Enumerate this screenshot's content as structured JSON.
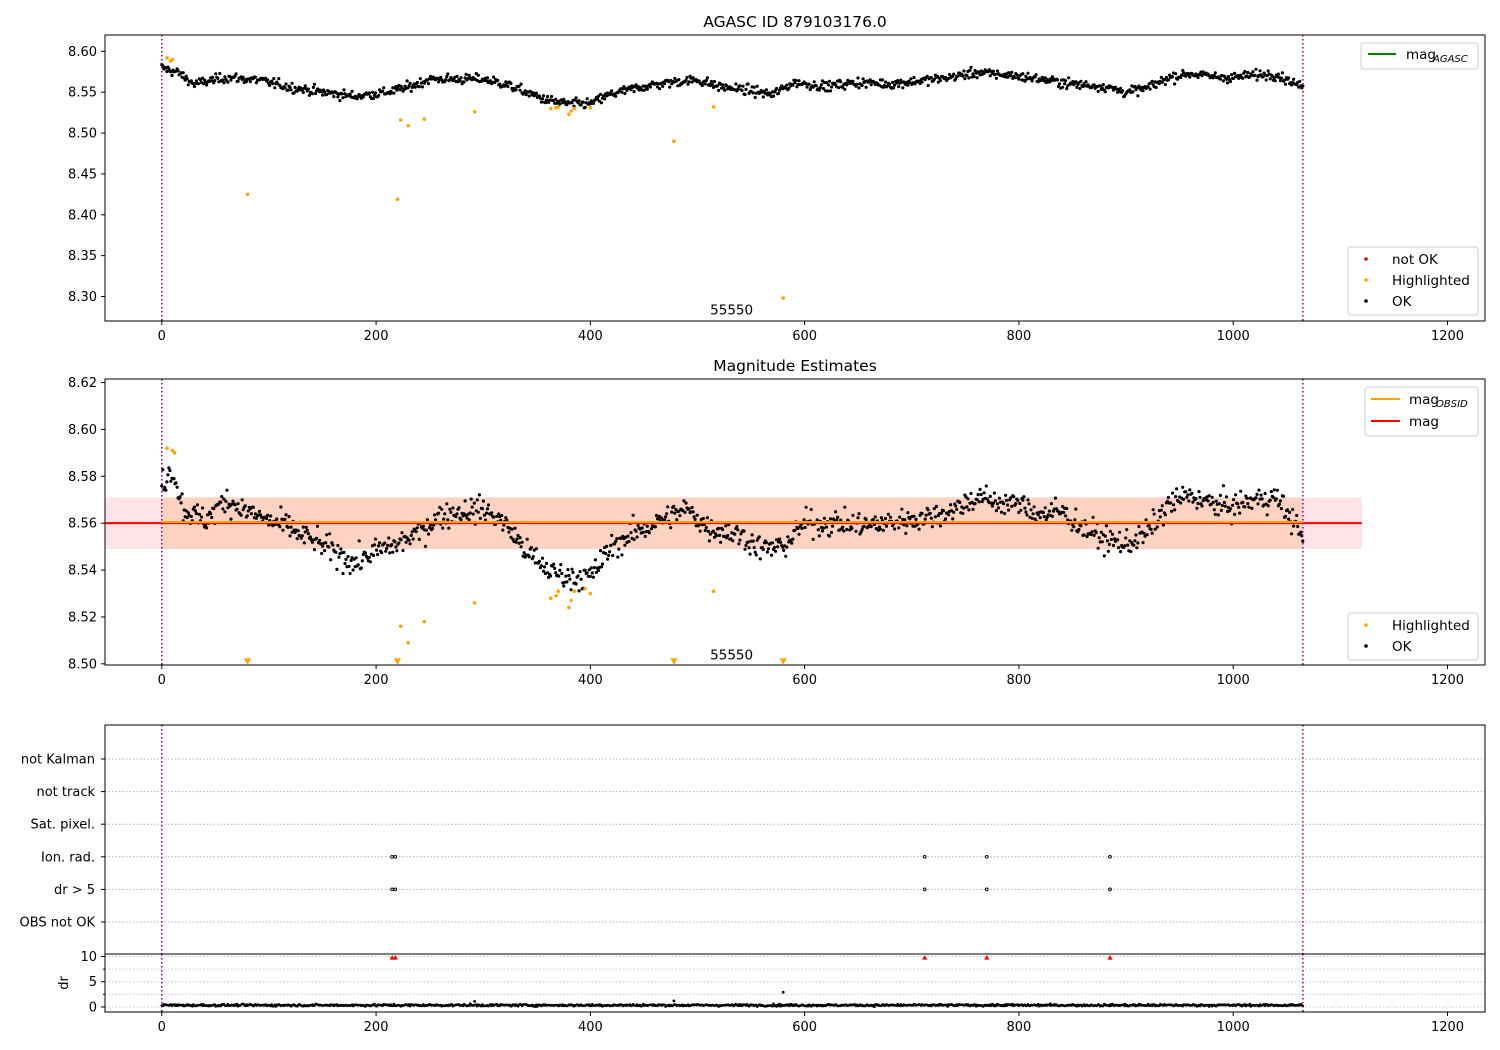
{
  "chart_data": [
    {
      "type": "scatter",
      "title": "AGASC ID 879103176.0",
      "xlim": [
        -53,
        1235
      ],
      "ylim": [
        8.27,
        8.62
      ],
      "xticks": [
        "0",
        "200",
        "400",
        "600",
        "800",
        "1000",
        "1200"
      ],
      "yticks": [
        "8.30",
        "8.35",
        "8.40",
        "8.45",
        "8.50",
        "8.55",
        "8.60"
      ],
      "vlines": [
        0,
        1065
      ],
      "annotation": {
        "text": "55550",
        "x": 530,
        "y": 8.283
      },
      "line_legend": {
        "label": "mag",
        "subscript": "AGASC",
        "color": "#008000",
        "position": "upper-right"
      },
      "marker_legend": {
        "position": "lower-right",
        "entries": [
          {
            "label": "not OK",
            "color": "#ff0000"
          },
          {
            "label": "Highlighted",
            "color": "#ffa500"
          },
          {
            "label": "OK",
            "color": "#000000"
          }
        ]
      },
      "series": [
        {
          "name": "OK",
          "color": "#000000",
          "baseline": [
            [
              0,
              8.58
            ],
            [
              15,
              8.574
            ],
            [
              30,
              8.56
            ],
            [
              60,
              8.568
            ],
            [
              90,
              8.565
            ],
            [
              120,
              8.556
            ],
            [
              150,
              8.55
            ],
            [
              180,
              8.545
            ],
            [
              210,
              8.55
            ],
            [
              230,
              8.556
            ],
            [
              250,
              8.566
            ],
            [
              280,
              8.566
            ],
            [
              300,
              8.566
            ],
            [
              320,
              8.56
            ],
            [
              340,
              8.55
            ],
            [
              360,
              8.54
            ],
            [
              380,
              8.536
            ],
            [
              400,
              8.536
            ],
            [
              420,
              8.548
            ],
            [
              450,
              8.557
            ],
            [
              480,
              8.563
            ],
            [
              500,
              8.565
            ],
            [
              520,
              8.557
            ],
            [
              550,
              8.552
            ],
            [
              570,
              8.547
            ],
            [
              590,
              8.562
            ],
            [
              620,
              8.557
            ],
            [
              650,
              8.562
            ],
            [
              680,
              8.56
            ],
            [
              700,
              8.563
            ],
            [
              730,
              8.567
            ],
            [
              760,
              8.574
            ],
            [
              790,
              8.571
            ],
            [
              820,
              8.566
            ],
            [
              850,
              8.56
            ],
            [
              880,
              8.557
            ],
            [
              900,
              8.55
            ],
            [
              920,
              8.555
            ],
            [
              940,
              8.568
            ],
            [
              960,
              8.573
            ],
            [
              980,
              8.569
            ],
            [
              1000,
              8.568
            ],
            [
              1020,
              8.571
            ],
            [
              1040,
              8.572
            ],
            [
              1065,
              8.556
            ]
          ],
          "noise": 0.005
        },
        {
          "name": "Highlighted",
          "color": "#ffa500",
          "points": [
            [
              5,
              8.592
            ],
            [
              8,
              8.588
            ],
            [
              10,
              8.59
            ],
            [
              80,
              8.425
            ],
            [
              220,
              8.419
            ],
            [
              223,
              8.516
            ],
            [
              230,
              8.509
            ],
            [
              245,
              8.517
            ],
            [
              292,
              8.526
            ],
            [
              363,
              8.53
            ],
            [
              368,
              8.531
            ],
            [
              370,
              8.532
            ],
            [
              380,
              8.523
            ],
            [
              382,
              8.527
            ],
            [
              385,
              8.53
            ],
            [
              400,
              8.531
            ],
            [
              478,
              8.49
            ],
            [
              515,
              8.532
            ],
            [
              580,
              8.298
            ]
          ]
        }
      ]
    },
    {
      "type": "scatter",
      "title": "Magnitude Estimates",
      "xlim": [
        -53,
        1235
      ],
      "ylim": [
        8.4995,
        8.6215
      ],
      "xticks": [
        "0",
        "200",
        "400",
        "600",
        "800",
        "1000",
        "1200"
      ],
      "yticks": [
        "8.50",
        "8.52",
        "8.54",
        "8.56",
        "8.58",
        "8.60",
        "8.62"
      ],
      "vlines": [
        0,
        1065
      ],
      "annotation": {
        "text": "55550",
        "x": 530,
        "y": 8.5035
      },
      "band_mag": {
        "y0": 8.549,
        "y1": 8.571,
        "x0": -53,
        "x1": 1120,
        "color": "#ff9aa8"
      },
      "band_obsid": {
        "y0": 8.549,
        "y1": 8.571,
        "x0": 0,
        "x1": 1065,
        "color": "#ffb27a"
      },
      "line_mag": {
        "y": 8.56,
        "color": "#ff0000"
      },
      "line_obsid": {
        "y": 8.5605,
        "color": "#ffa500"
      },
      "line_legend": [
        {
          "label": "mag",
          "subscript": "OBSID",
          "color": "#ffa500"
        },
        {
          "label": "mag",
          "subscript": "",
          "color": "#ff0000"
        }
      ],
      "marker_legend": {
        "position": "lower-right",
        "entries": [
          {
            "label": "Highlighted",
            "color": "#ffa500"
          },
          {
            "label": "OK",
            "color": "#000000"
          }
        ]
      },
      "series": [
        {
          "name": "OK",
          "color": "#000000",
          "baseline": [
            [
              0,
              8.577
            ],
            [
              10,
              8.583
            ],
            [
              20,
              8.566
            ],
            [
              40,
              8.561
            ],
            [
              60,
              8.57
            ],
            [
              80,
              8.565
            ],
            [
              100,
              8.561
            ],
            [
              120,
              8.558
            ],
            [
              140,
              8.553
            ],
            [
              160,
              8.548
            ],
            [
              180,
              8.543
            ],
            [
              200,
              8.548
            ],
            [
              220,
              8.551
            ],
            [
              240,
              8.556
            ],
            [
              260,
              8.563
            ],
            [
              280,
              8.565
            ],
            [
              300,
              8.566
            ],
            [
              320,
              8.56
            ],
            [
              340,
              8.548
            ],
            [
              360,
              8.54
            ],
            [
              380,
              8.537
            ],
            [
              400,
              8.537
            ],
            [
              420,
              8.55
            ],
            [
              450,
              8.558
            ],
            [
              470,
              8.562
            ],
            [
              490,
              8.566
            ],
            [
              510,
              8.558
            ],
            [
              540,
              8.555
            ],
            [
              560,
              8.549
            ],
            [
              580,
              8.55
            ],
            [
              600,
              8.56
            ],
            [
              630,
              8.56
            ],
            [
              660,
              8.559
            ],
            [
              690,
              8.561
            ],
            [
              720,
              8.563
            ],
            [
              740,
              8.566
            ],
            [
              760,
              8.571
            ],
            [
              780,
              8.569
            ],
            [
              800,
              8.568
            ],
            [
              820,
              8.564
            ],
            [
              840,
              8.565
            ],
            [
              860,
              8.558
            ],
            [
              880,
              8.553
            ],
            [
              900,
              8.551
            ],
            [
              920,
              8.556
            ],
            [
              940,
              8.568
            ],
            [
              960,
              8.572
            ],
            [
              980,
              8.568
            ],
            [
              1000,
              8.567
            ],
            [
              1020,
              8.57
            ],
            [
              1040,
              8.571
            ],
            [
              1065,
              8.555
            ]
          ],
          "noise": 0.0045
        },
        {
          "name": "Highlighted",
          "color": "#ffa500",
          "points": [
            [
              5,
              8.592
            ],
            [
              10,
              8.591
            ],
            [
              12,
              8.59
            ],
            [
              223,
              8.516
            ],
            [
              230,
              8.509
            ],
            [
              245,
              8.518
            ],
            [
              292,
              8.526
            ],
            [
              363,
              8.528
            ],
            [
              368,
              8.529
            ],
            [
              370,
              8.531
            ],
            [
              380,
              8.524
            ],
            [
              382,
              8.527
            ],
            [
              385,
              8.531
            ],
            [
              395,
              8.532
            ],
            [
              400,
              8.53
            ],
            [
              515,
              8.531
            ]
          ]
        },
        {
          "name": "Highlighted (clipped)",
          "color": "#ffa500",
          "marker": "triangle-down",
          "points": [
            [
              80,
              8.5
            ],
            [
              220,
              8.5
            ],
            [
              478,
              8.5
            ],
            [
              580,
              8.5
            ]
          ]
        }
      ]
    },
    {
      "type": "scatter",
      "title": "",
      "xlim": [
        -53,
        1235
      ],
      "xticks": [
        "0",
        "200",
        "400",
        "600",
        "800",
        "1000",
        "1200"
      ],
      "vlines": [
        0,
        1065
      ],
      "flag_rows": [
        "not Kalman",
        "not track",
        "Sat. pixel.",
        "Ion. rad.",
        "dr > 5",
        "OBS not OK"
      ],
      "flags": [
        {
          "row": "Ion. rad.",
          "x": [
            215,
            218,
            712,
            770,
            885
          ]
        },
        {
          "row": "dr > 5",
          "x": [
            215,
            218,
            712,
            770,
            885
          ]
        }
      ]
    },
    {
      "type": "scatter",
      "title": "",
      "ylabel": "dr",
      "xlim": [
        -53,
        1235
      ],
      "ylim": [
        -1,
        10.5
      ],
      "yticks": [
        "0",
        "5",
        "10"
      ],
      "xticks": [
        "0",
        "200",
        "400",
        "600",
        "800",
        "1000",
        "1200"
      ],
      "vlines": [
        0,
        1065
      ],
      "series": [
        {
          "name": "dr",
          "color": "#000000",
          "level": 0.35,
          "noise": 0.18,
          "extra_points": [
            [
              292,
              1.1
            ],
            [
              478,
              1.2
            ],
            [
              580,
              2.9
            ]
          ]
        },
        {
          "name": "dr clipped",
          "color": "#ff0000",
          "marker": "triangle-up",
          "points": [
            [
              215,
              10
            ],
            [
              218,
              10
            ],
            [
              712,
              10
            ],
            [
              770,
              10
            ],
            [
              885,
              10
            ]
          ]
        }
      ]
    }
  ]
}
